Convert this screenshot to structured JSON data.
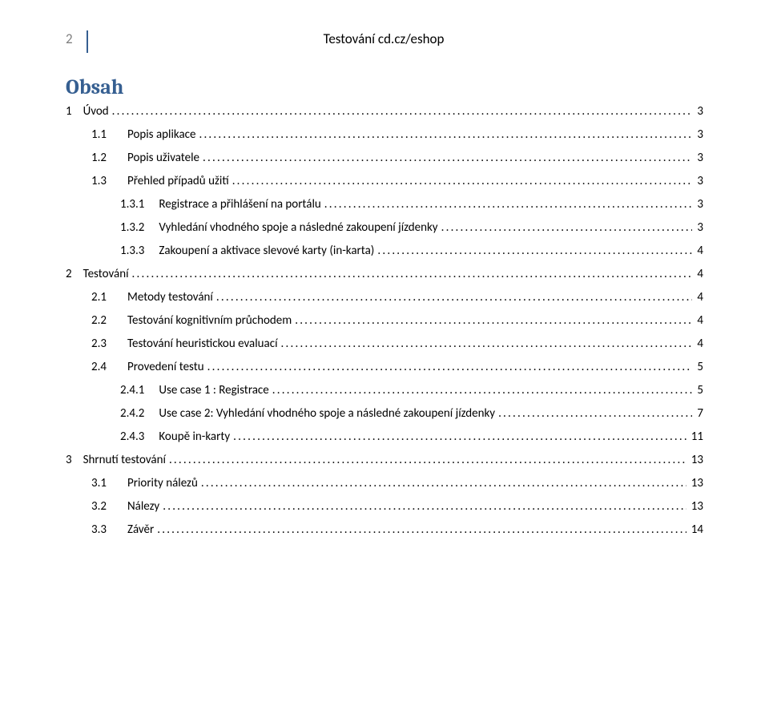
{
  "header": {
    "page_number": "2",
    "doc_title": "Testování cd.cz/eshop"
  },
  "heading": "Obsah",
  "toc": [
    {
      "level": 1,
      "num": "1",
      "title": "Úvod",
      "page": "3"
    },
    {
      "level": 2,
      "num": "1.1",
      "title": "Popis aplikace",
      "page": "3"
    },
    {
      "level": 2,
      "num": "1.2",
      "title": "Popis uživatele",
      "page": "3"
    },
    {
      "level": 2,
      "num": "1.3",
      "title": "Přehled případů užití",
      "page": "3"
    },
    {
      "level": 3,
      "num": "1.3.1",
      "title": "Registrace a přihlášení na portálu",
      "page": "3"
    },
    {
      "level": 3,
      "num": "1.3.2",
      "title": "Vyhledání vhodného spoje a následné zakoupení jízdenky",
      "page": "3"
    },
    {
      "level": 3,
      "num": "1.3.3",
      "title": "Zakoupení a aktivace slevové karty (in-karta)",
      "page": "4"
    },
    {
      "level": 1,
      "num": "2",
      "title": "Testování",
      "page": "4"
    },
    {
      "level": 2,
      "num": "2.1",
      "title": "Metody testování",
      "page": "4"
    },
    {
      "level": 2,
      "num": "2.2",
      "title": "Testování kognitivním průchodem",
      "page": "4"
    },
    {
      "level": 2,
      "num": "2.3",
      "title": "Testování heuristickou evaluací",
      "page": "4"
    },
    {
      "level": 2,
      "num": "2.4",
      "title": "Provedení testu",
      "page": "5"
    },
    {
      "level": 3,
      "num": "2.4.1",
      "title": "Use case 1 : Registrace",
      "page": "5"
    },
    {
      "level": 3,
      "num": "2.4.2",
      "title": "Use case 2: Vyhledání vhodného spoje a následné zakoupení jízdenky",
      "page": "7"
    },
    {
      "level": 3,
      "num": "2.4.3",
      "title": "Koupě in-karty",
      "page": "11"
    },
    {
      "level": 1,
      "num": "3",
      "title": "Shrnutí testování",
      "page": "13"
    },
    {
      "level": 2,
      "num": "3.1",
      "title": "Priority nálezů",
      "page": "13"
    },
    {
      "level": 2,
      "num": "3.2",
      "title": "Nálezy",
      "page": "13"
    },
    {
      "level": 2,
      "num": "3.3",
      "title": "Závěr",
      "page": "14"
    }
  ],
  "colors": {
    "heading_color": "#365f91",
    "text_color": "#000000",
    "pagenum_color": "#7f7f7f",
    "divider_color": "#365f91",
    "background": "#ffffff"
  }
}
